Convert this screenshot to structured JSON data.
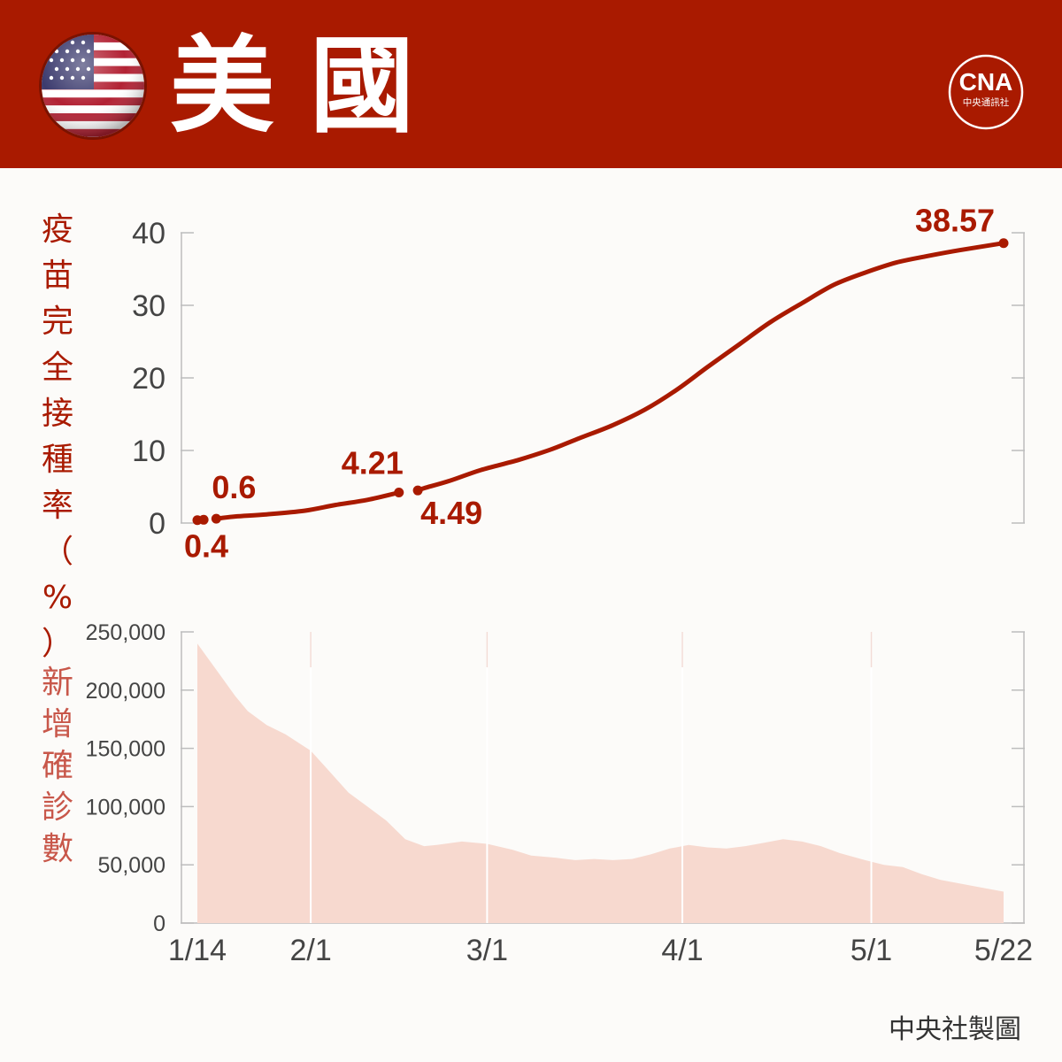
{
  "header": {
    "title": "美國",
    "logo_text": "CNA",
    "logo_subtext": "中央通訊社",
    "flag_icon": "us-flag-icon"
  },
  "colors": {
    "header_bg": "#a91a00",
    "line": "#a91a00",
    "area_fill": "#f7d9cf",
    "area_label": "#c8574a"
  },
  "credit": "中央社製圖",
  "chart_data": [
    {
      "type": "line",
      "ylabel": "疫苗完全接種率（%）",
      "ylim": [
        0,
        40
      ],
      "yticks": [
        "0",
        "10",
        "20",
        "30",
        "40"
      ],
      "grid": false,
      "dates": [
        "1/14",
        "1/15",
        "1/17",
        "1/20",
        "1/25",
        "1/31",
        "2/5",
        "2/10",
        "2/15",
        "2/18",
        "2/19",
        "2/23",
        "2/28",
        "3/6",
        "3/11",
        "3/16",
        "3/21",
        "3/26",
        "3/31",
        "4/5",
        "4/10",
        "4/15",
        "4/20",
        "4/25",
        "4/30",
        "5/5",
        "5/10",
        "5/15",
        "5/22"
      ],
      "values": [
        0.4,
        0.45,
        0.6,
        0.9,
        1.2,
        1.7,
        2.5,
        3.2,
        4.21,
        4.49,
        4.8,
        5.8,
        7.3,
        8.7,
        10.1,
        11.8,
        13.5,
        15.6,
        18.3,
        21.5,
        24.6,
        27.7,
        30.3,
        32.8,
        34.5,
        35.9,
        36.8,
        37.6,
        38.57
      ],
      "data_labels": [
        {
          "date": "1/14",
          "text": "0.4"
        },
        {
          "date": "1/17",
          "text": "0.6"
        },
        {
          "date": "2/15",
          "text": "4.21"
        },
        {
          "date": "2/18",
          "text": "4.49"
        },
        {
          "date": "5/22",
          "text": "38.57"
        }
      ]
    },
    {
      "type": "area",
      "ylabel": "新增確診數",
      "ylim": [
        0,
        250000
      ],
      "yticks": [
        "0",
        "50,000",
        "100,000",
        "150,000",
        "200,000",
        "250,000"
      ],
      "xticks": [
        "1/14",
        "2/1",
        "3/1",
        "4/1",
        "5/1",
        "5/22"
      ],
      "dates": [
        "1/14",
        "1/16",
        "1/18",
        "1/20",
        "1/22",
        "1/25",
        "1/28",
        "2/1",
        "2/4",
        "2/7",
        "2/10",
        "2/13",
        "2/16",
        "2/19",
        "2/21",
        "2/25",
        "3/1",
        "3/5",
        "3/8",
        "3/12",
        "3/15",
        "3/18",
        "3/21",
        "3/24",
        "3/27",
        "3/30",
        "4/2",
        "4/5",
        "4/8",
        "4/11",
        "4/14",
        "4/17",
        "4/20",
        "4/23",
        "4/26",
        "4/30",
        "5/3",
        "5/6",
        "5/9",
        "5/12",
        "5/15",
        "5/18",
        "5/22"
      ],
      "values": [
        240000,
        225000,
        210000,
        195000,
        182000,
        170000,
        162000,
        148000,
        130000,
        112000,
        100000,
        88000,
        72000,
        66000,
        67000,
        70000,
        68000,
        63000,
        58000,
        56000,
        54000,
        55000,
        54000,
        55000,
        59000,
        64000,
        67000,
        65000,
        64000,
        66000,
        69000,
        72000,
        70000,
        66000,
        60000,
        54000,
        50000,
        48000,
        42000,
        37000,
        34000,
        31000,
        27000
      ]
    }
  ]
}
